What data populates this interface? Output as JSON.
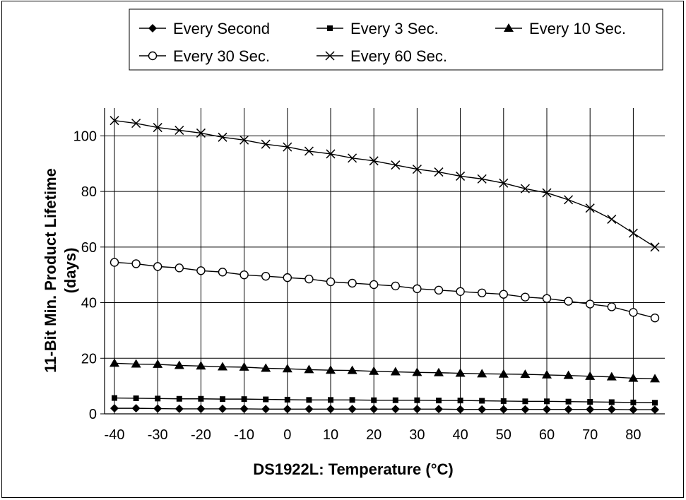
{
  "chart_data": {
    "type": "line",
    "title": "",
    "xlabel": "DS1922L: Temperature (°C)",
    "ylabel_line1": "11-Bit Min. Product Lifetime",
    "ylabel_line2": "(days)",
    "xlim": [
      -40,
      85
    ],
    "ylim": [
      0,
      110
    ],
    "x_ticks": [
      -40,
      -30,
      -20,
      -10,
      0,
      10,
      20,
      30,
      40,
      50,
      60,
      70,
      80
    ],
    "y_ticks": [
      0,
      20,
      40,
      60,
      80,
      100
    ],
    "x_tick_labels": [
      "-40",
      "-30",
      "-20",
      "-10",
      "0",
      "10",
      "20",
      "30",
      "40",
      "50",
      "60",
      "70",
      "80"
    ],
    "y_tick_labels": [
      "0",
      "20",
      "40",
      "60",
      "80",
      "100"
    ],
    "grid": true,
    "legend_position": "top",
    "x": [
      -40,
      -35,
      -30,
      -25,
      -20,
      -15,
      -10,
      -5,
      0,
      5,
      10,
      15,
      20,
      25,
      30,
      35,
      40,
      45,
      50,
      55,
      60,
      65,
      70,
      75,
      80,
      85
    ],
    "series": [
      {
        "name": "Every Second",
        "marker": "diamond",
        "values": [
          2.0,
          2.0,
          1.9,
          1.8,
          1.8,
          1.8,
          1.8,
          1.7,
          1.7,
          1.7,
          1.7,
          1.7,
          1.7,
          1.7,
          1.7,
          1.7,
          1.6,
          1.6,
          1.6,
          1.6,
          1.6,
          1.6,
          1.6,
          1.6,
          1.5,
          1.5
        ]
      },
      {
        "name": "Every 3 Sec.",
        "marker": "square",
        "values": [
          5.7,
          5.6,
          5.5,
          5.4,
          5.4,
          5.3,
          5.3,
          5.2,
          5.1,
          5.0,
          5.0,
          5.0,
          4.9,
          4.9,
          4.9,
          4.8,
          4.8,
          4.7,
          4.6,
          4.5,
          4.5,
          4.4,
          4.3,
          4.2,
          4.1,
          4.0
        ]
      },
      {
        "name": "Every 10 Sec.",
        "marker": "triangle",
        "values": [
          18.2,
          17.9,
          17.8,
          17.4,
          17.2,
          16.9,
          16.8,
          16.4,
          16.2,
          15.9,
          15.7,
          15.6,
          15.3,
          15.1,
          14.9,
          14.8,
          14.6,
          14.4,
          14.3,
          14.2,
          14.0,
          13.8,
          13.5,
          13.3,
          12.8,
          12.6
        ]
      },
      {
        "name": "Every 30 Sec.",
        "marker": "circle",
        "values": [
          54.5,
          54.0,
          53.0,
          52.5,
          51.5,
          51.0,
          50.0,
          49.5,
          49.0,
          48.5,
          47.5,
          47.0,
          46.5,
          46.0,
          45.0,
          44.5,
          44.0,
          43.5,
          43.0,
          42.0,
          41.5,
          40.5,
          39.5,
          38.5,
          36.5,
          34.5
        ]
      },
      {
        "name": "Every 60 Sec.",
        "marker": "x",
        "values": [
          105.5,
          104.5,
          103.0,
          102.0,
          101.0,
          99.5,
          98.5,
          97.0,
          96.0,
          94.5,
          93.5,
          92.0,
          91.0,
          89.5,
          88.0,
          87.0,
          85.5,
          84.5,
          83.0,
          81.0,
          79.5,
          77.0,
          74.0,
          70.0,
          65.0,
          60.0
        ]
      }
    ]
  }
}
